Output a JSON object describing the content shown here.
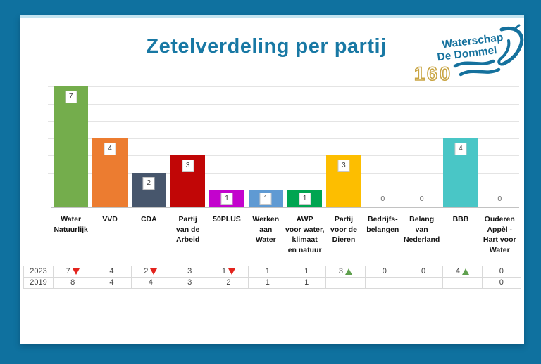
{
  "title": "Zetelverdeling per partij",
  "logo": {
    "line1": "Waterschap",
    "line2": "De Dommel",
    "anniversary": "160",
    "teal": "#15719d",
    "gold": "#c9a544"
  },
  "colors": {
    "background": "#0f719f",
    "card": "#ffffff",
    "card_top_accent": "#c3e4f0",
    "title_text": "#1878a4",
    "gridline": "#e4e4e4",
    "axis": "#c2c2c2",
    "zero_label": "#6a6a6a",
    "table_border": "#d9d9d9",
    "trend_down": "#e3231d",
    "trend_up": "#5fa04e"
  },
  "chart_data": {
    "type": "bar",
    "title": "Zetelverdeling per partij",
    "ylim": [
      0,
      7
    ],
    "grid": true,
    "value_labels": true,
    "categories": [
      {
        "name": "Water Natuurlijk",
        "lines": [
          "Water",
          "Natuurlijk"
        ]
      },
      {
        "name": "VVD",
        "lines": [
          "VVD"
        ]
      },
      {
        "name": "CDA",
        "lines": [
          "CDA"
        ]
      },
      {
        "name": "Partij van de Arbeid",
        "lines": [
          "Partij",
          "van de",
          "Arbeid"
        ]
      },
      {
        "name": "50PLUS",
        "lines": [
          "50PLUS"
        ]
      },
      {
        "name": "Werken aan Water",
        "lines": [
          "Werken",
          "aan",
          "Water"
        ]
      },
      {
        "name": "AWP voor water, klimaat en natuur",
        "lines": [
          "AWP",
          "voor water,",
          "klimaat",
          "en natuur"
        ]
      },
      {
        "name": "Partij voor de Dieren",
        "lines": [
          "Partij",
          "voor de",
          "Dieren"
        ]
      },
      {
        "name": "Bedrijfsbelangen",
        "lines": [
          "Bedrijfs-",
          "belangen"
        ]
      },
      {
        "name": "Belang van Nederland",
        "lines": [
          "Belang",
          "van",
          "Nederland"
        ]
      },
      {
        "name": "BBB",
        "lines": [
          "BBB"
        ]
      },
      {
        "name": "Ouderen Appèl - Hart voor Water",
        "lines": [
          "Ouderen",
          "Appèl -",
          "Hart voor",
          "Water"
        ]
      }
    ],
    "bar_colors": [
      "#74ad4c",
      "#ec7c30",
      "#47566c",
      "#c10606",
      "#c303cd",
      "#5f9ad3",
      "#00a551",
      "#fdbe00",
      "#9e9e9e",
      "#9e9e9e",
      "#49c6c6",
      "#9e9e9e"
    ],
    "series": [
      {
        "name": "2023",
        "values": [
          7,
          4,
          2,
          3,
          1,
          1,
          1,
          3,
          0,
          0,
          4,
          0
        ],
        "trends": [
          "down",
          "",
          "down",
          "",
          "down",
          "",
          "",
          "up",
          "",
          "",
          "up",
          ""
        ]
      },
      {
        "name": "2019",
        "values": [
          8,
          4,
          4,
          3,
          2,
          1,
          1,
          null,
          null,
          null,
          null,
          0
        ],
        "trends": [
          "",
          "",
          "",
          "",
          "",
          "",
          "",
          "",
          "",
          "",
          "",
          ""
        ]
      }
    ]
  }
}
